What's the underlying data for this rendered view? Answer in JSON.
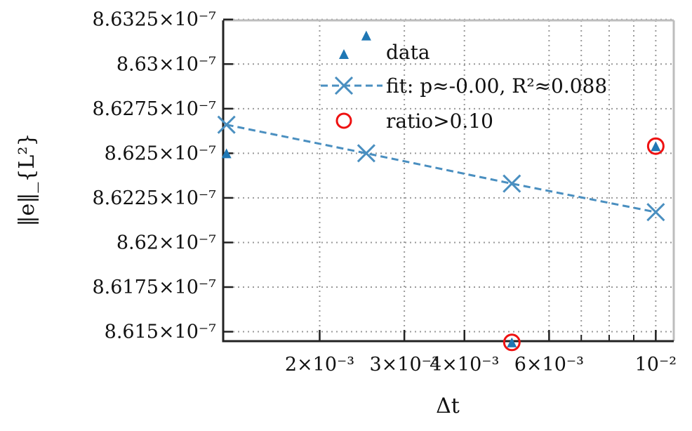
{
  "chart_data": {
    "type": "scatter",
    "xlabel": "Δt",
    "ylabel": "‖e‖_{L²}",
    "xscale": "log",
    "yscale": "linear",
    "xlim": [
      0.00126,
      0.0109
    ],
    "ylim": [
      8.61447e-07,
      8.63245e-07
    ],
    "grid": true,
    "legend_placement": "top-right",
    "x_ticks": [
      {
        "value": 0.002,
        "label": "2×10⁻³"
      },
      {
        "value": 0.003,
        "label": "3×10⁻³"
      },
      {
        "value": 0.004,
        "label": "4×10⁻³"
      },
      {
        "value": 0.006,
        "label": "6×10⁻³"
      },
      {
        "value": 0.01,
        "label": "10⁻²"
      }
    ],
    "x_minor": [
      0.007,
      0.008,
      0.009
    ],
    "y_ticks": [
      {
        "value": 8.615e-07,
        "label": "8.615×10⁻⁷"
      },
      {
        "value": 8.6175e-07,
        "label": "8.6175×10⁻⁷"
      },
      {
        "value": 8.62e-07,
        "label": "8.62×10⁻⁷"
      },
      {
        "value": 8.6225e-07,
        "label": "8.6225×10⁻⁷"
      },
      {
        "value": 8.625e-07,
        "label": "8.625×10⁻⁷"
      },
      {
        "value": 8.6275e-07,
        "label": "8.6275×10⁻⁷"
      },
      {
        "value": 8.63e-07,
        "label": "8.63×10⁻⁷"
      },
      {
        "value": 8.6325e-07,
        "label": "8.6325×10⁻⁷"
      }
    ],
    "series": [
      {
        "name": "data",
        "marker": "triangle",
        "color": "#1f77b4",
        "points": [
          {
            "x": 0.00128,
            "y": 8.625e-07
          },
          {
            "x": 0.0025,
            "y": 8.6316e-07
          },
          {
            "x": 0.00502,
            "y": 8.6144e-07
          },
          {
            "x": 0.01,
            "y": 8.6254e-07
          }
        ]
      },
      {
        "name": "fit: p≈-0.00, R²≈0.088",
        "marker": "x",
        "line": "dashed",
        "color": "#4a8fc0",
        "points": [
          {
            "x": 0.00128,
            "y": 8.6266e-07
          },
          {
            "x": 0.0025,
            "y": 8.625e-07
          },
          {
            "x": 0.00502,
            "y": 8.6233e-07
          },
          {
            "x": 0.01,
            "y": 8.6217e-07
          }
        ]
      },
      {
        "name": "ratio>0.10",
        "marker": "open-circle",
        "color": "#ee1111",
        "points": [
          {
            "x": 0.00502,
            "y": 8.6144e-07
          },
          {
            "x": 0.01,
            "y": 8.6254e-07
          }
        ]
      }
    ]
  }
}
